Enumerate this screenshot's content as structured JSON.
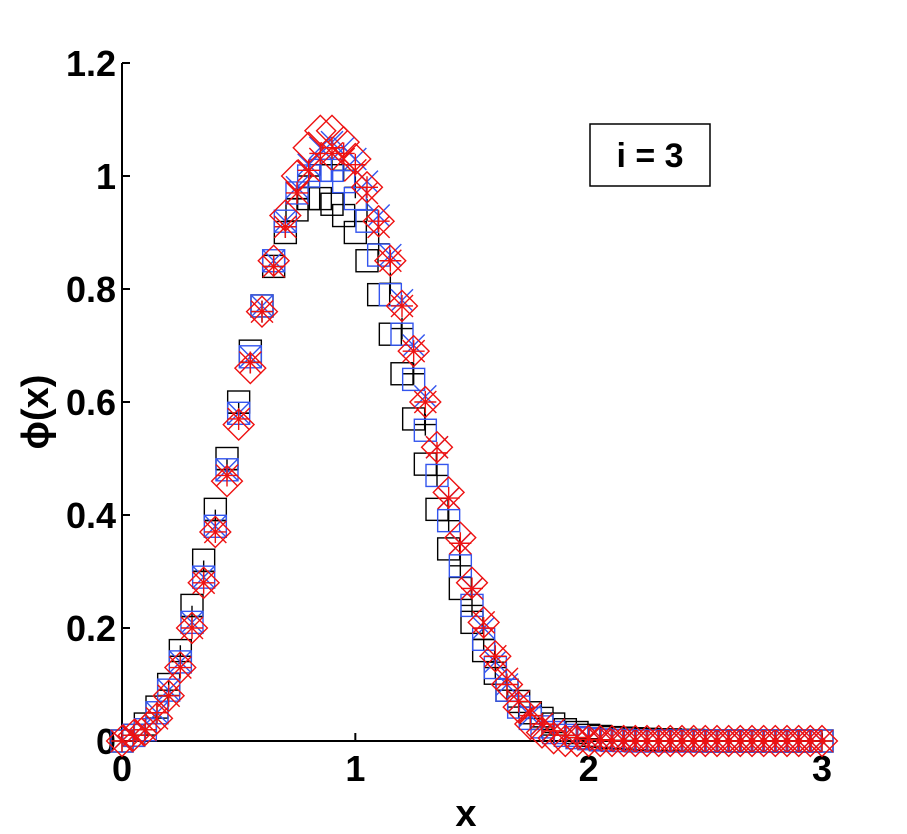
{
  "chart_data": {
    "type": "scatter",
    "xlabel": "x",
    "ylabel": "ϕ(x)",
    "xlim": [
      0,
      3
    ],
    "ylim": [
      0,
      1.2
    ],
    "x_ticks": [
      "0",
      "1",
      "2",
      "3"
    ],
    "y_ticks": [
      "0",
      "0.2",
      "0.4",
      "0.6",
      "0.8",
      "1",
      "1.2"
    ],
    "annotation": "i = 3",
    "grid": false,
    "x": [
      0.0,
      0.05,
      0.1,
      0.15,
      0.2,
      0.25,
      0.3,
      0.35,
      0.4,
      0.45,
      0.5,
      0.55,
      0.6,
      0.65,
      0.7,
      0.75,
      0.8,
      0.85,
      0.9,
      0.95,
      1.0,
      1.05,
      1.1,
      1.15,
      1.2,
      1.25,
      1.3,
      1.35,
      1.4,
      1.45,
      1.5,
      1.55,
      1.6,
      1.65,
      1.7,
      1.75,
      1.8,
      1.85,
      1.9,
      1.95,
      2.0,
      2.05,
      2.1,
      2.15,
      2.2,
      2.25,
      2.3,
      2.35,
      2.4,
      2.45,
      2.5,
      2.55,
      2.6,
      2.65,
      2.7,
      2.75,
      2.8,
      2.85,
      2.9,
      2.95,
      3.0
    ],
    "series": [
      {
        "marker": "square",
        "color": "#000000",
        "values": [
          0.0,
          0.01,
          0.03,
          0.06,
          0.1,
          0.16,
          0.24,
          0.32,
          0.41,
          0.5,
          0.6,
          0.69,
          0.77,
          0.84,
          0.9,
          0.94,
          0.96,
          0.96,
          0.95,
          0.93,
          0.9,
          0.85,
          0.79,
          0.72,
          0.65,
          0.57,
          0.49,
          0.41,
          0.34,
          0.27,
          0.21,
          0.16,
          0.12,
          0.09,
          0.07,
          0.05,
          0.04,
          0.03,
          0.02,
          0.015,
          0.01,
          0.008,
          0.006,
          0.005,
          0.004,
          0.003,
          0.002,
          0.002,
          0.001,
          0.001,
          0.0,
          0.0,
          0.0,
          0.0,
          0.0,
          0.0,
          0.0,
          0.0,
          0.0,
          0.0,
          0.0
        ]
      },
      {
        "marker": "plus",
        "color": "#000000",
        "values": [
          0.0,
          0.01,
          0.02,
          0.05,
          0.09,
          0.15,
          0.22,
          0.3,
          0.39,
          0.48,
          0.58,
          0.67,
          0.76,
          0.84,
          0.91,
          0.96,
          1.0,
          1.02,
          1.02,
          1.01,
          0.98,
          0.94,
          0.88,
          0.81,
          0.73,
          0.65,
          0.56,
          0.47,
          0.39,
          0.31,
          0.24,
          0.18,
          0.13,
          0.09,
          0.06,
          0.04,
          0.025,
          0.015,
          0.01,
          0.006,
          0.004,
          0.002,
          0.001,
          0.001,
          0.0,
          0.0,
          0.0,
          0.0,
          0.0,
          0.0,
          0.0,
          0.0,
          0.0,
          0.0,
          0.0,
          0.0,
          0.0,
          0.0,
          0.0,
          0.0,
          0.0
        ]
      },
      {
        "marker": "square",
        "color": "#3355ee",
        "values": [
          0.0,
          0.01,
          0.02,
          0.05,
          0.09,
          0.14,
          0.21,
          0.29,
          0.38,
          0.48,
          0.58,
          0.68,
          0.77,
          0.85,
          0.92,
          0.97,
          1.0,
          1.01,
          1.01,
          0.99,
          0.96,
          0.92,
          0.86,
          0.79,
          0.72,
          0.64,
          0.55,
          0.47,
          0.39,
          0.31,
          0.24,
          0.18,
          0.13,
          0.09,
          0.06,
          0.04,
          0.025,
          0.015,
          0.01,
          0.006,
          0.004,
          0.002,
          0.001,
          0.001,
          0.0,
          0.0,
          0.0,
          0.0,
          0.0,
          0.0,
          0.0,
          0.0,
          0.0,
          0.0,
          0.0,
          0.0,
          0.0,
          0.0,
          0.0,
          0.0,
          0.0
        ]
      },
      {
        "marker": "x",
        "color": "#3355ee",
        "values": [
          0.0,
          0.01,
          0.02,
          0.05,
          0.09,
          0.14,
          0.21,
          0.29,
          0.38,
          0.48,
          0.58,
          0.68,
          0.77,
          0.85,
          0.92,
          0.98,
          1.02,
          1.05,
          1.06,
          1.05,
          1.03,
          0.99,
          0.93,
          0.86,
          0.78,
          0.7,
          0.61,
          0.52,
          0.43,
          0.35,
          0.27,
          0.2,
          0.14,
          0.1,
          0.07,
          0.045,
          0.03,
          0.02,
          0.012,
          0.007,
          0.004,
          0.002,
          0.001,
          0.001,
          0.0,
          0.0,
          0.0,
          0.0,
          0.0,
          0.0,
          0.0,
          0.0,
          0.0,
          0.0,
          0.0,
          0.0,
          0.0,
          0.0,
          0.0,
          0.0,
          0.0
        ]
      },
      {
        "marker": "plus",
        "color": "#ee1111",
        "values": [
          0.0,
          0.01,
          0.02,
          0.05,
          0.08,
          0.13,
          0.2,
          0.28,
          0.37,
          0.47,
          0.57,
          0.67,
          0.76,
          0.84,
          0.91,
          0.97,
          1.01,
          1.04,
          1.05,
          1.04,
          1.02,
          0.98,
          0.92,
          0.85,
          0.77,
          0.69,
          0.6,
          0.51,
          0.43,
          0.35,
          0.27,
          0.2,
          0.15,
          0.1,
          0.07,
          0.045,
          0.03,
          0.018,
          0.01,
          0.006,
          0.003,
          0.002,
          0.001,
          0.0,
          0.0,
          0.0,
          0.0,
          0.0,
          0.0,
          0.0,
          0.0,
          0.0,
          0.0,
          0.0,
          0.0,
          0.0,
          0.0,
          0.0,
          0.0,
          0.0,
          0.0
        ]
      },
      {
        "marker": "x",
        "color": "#ee1111",
        "values": [
          0.0,
          0.01,
          0.02,
          0.04,
          0.08,
          0.13,
          0.2,
          0.28,
          0.37,
          0.47,
          0.57,
          0.67,
          0.76,
          0.84,
          0.91,
          0.97,
          1.01,
          1.03,
          1.04,
          1.03,
          1.01,
          0.97,
          0.91,
          0.85,
          0.77,
          0.69,
          0.6,
          0.52,
          0.43,
          0.35,
          0.27,
          0.21,
          0.15,
          0.11,
          0.07,
          0.05,
          0.03,
          0.02,
          0.012,
          0.007,
          0.004,
          0.002,
          0.001,
          0.0,
          0.0,
          0.0,
          0.0,
          0.0,
          0.0,
          0.0,
          0.0,
          0.0,
          0.0,
          0.0,
          0.0,
          0.0,
          0.0,
          0.0,
          0.0,
          0.0,
          0.0
        ]
      },
      {
        "marker": "diamond",
        "color": "#ee1111",
        "values": [
          0.0,
          0.01,
          0.02,
          0.04,
          0.08,
          0.13,
          0.2,
          0.28,
          0.37,
          0.46,
          0.56,
          0.66,
          0.76,
          0.85,
          0.93,
          1.0,
          1.05,
          1.08,
          1.08,
          1.06,
          1.03,
          0.98,
          0.92,
          0.85,
          0.77,
          0.69,
          0.6,
          0.52,
          0.44,
          0.36,
          0.28,
          0.21,
          0.15,
          0.1,
          0.06,
          0.03,
          0.015,
          0.005,
          0.0,
          0.0,
          0.0,
          0.0,
          0.0,
          0.0,
          0.0,
          0.0,
          0.0,
          0.0,
          0.0,
          0.0,
          0.0,
          0.0,
          0.0,
          0.0,
          0.0,
          0.0,
          0.0,
          0.0,
          0.0,
          0.0,
          0.0
        ]
      }
    ]
  }
}
